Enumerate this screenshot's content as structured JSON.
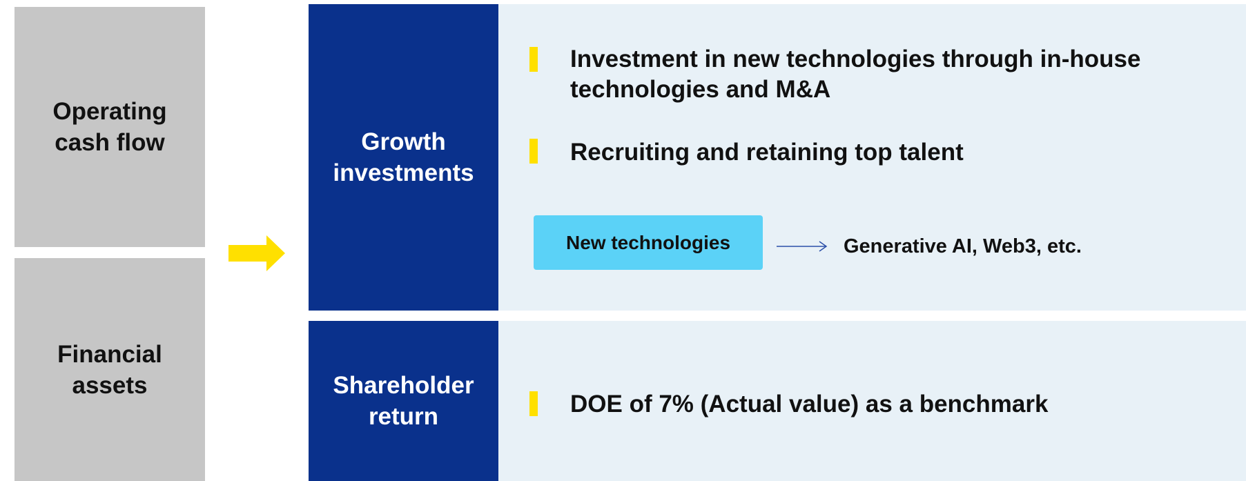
{
  "sources": [
    "Operating cash flow",
    "Financial assets"
  ],
  "uses": [
    {
      "label": "Growth investments",
      "bullets": [
        "Investment in new technologies through in-house technologies and M&A",
        "Recruiting and retaining top talent"
      ],
      "tag": "New technologies",
      "tag_note": "Generative AI, Web3, etc."
    },
    {
      "label": "Shareholder return",
      "bullets": [
        "DOE of 7% (Actual value) as a benchmark"
      ]
    }
  ]
}
